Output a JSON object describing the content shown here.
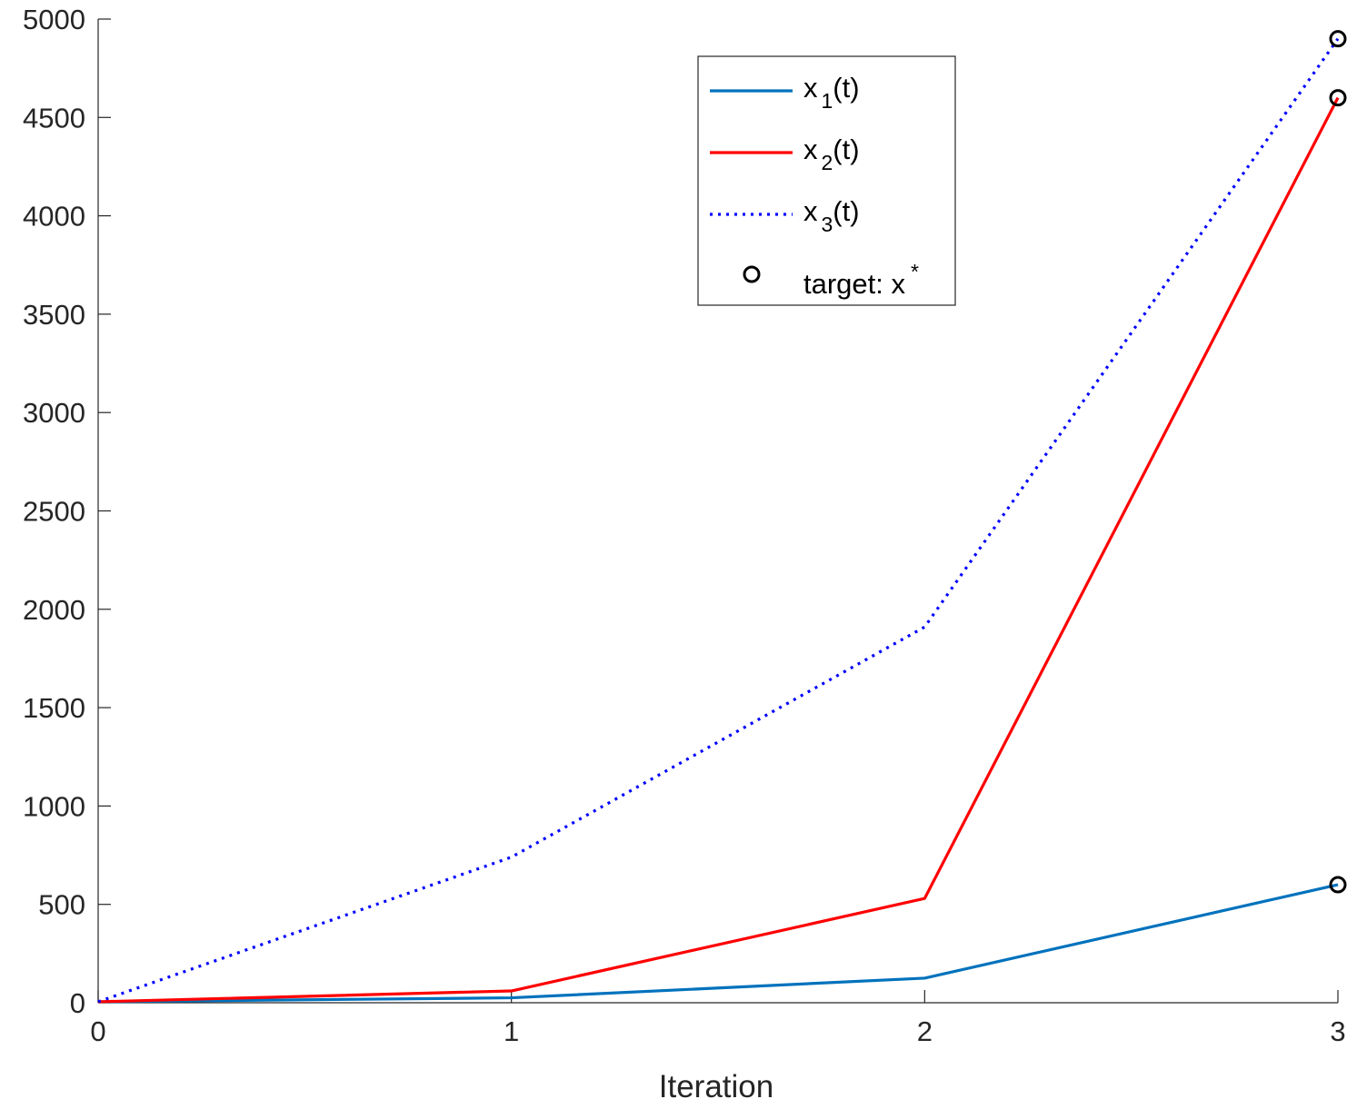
{
  "chart_data": {
    "type": "line",
    "xlabel": "Iteration",
    "ylabel": "",
    "title": "",
    "xlim": [
      0,
      3
    ],
    "ylim": [
      0,
      5000
    ],
    "x": [
      0,
      1,
      2,
      3
    ],
    "xticks": [
      "0",
      "1",
      "2",
      "3"
    ],
    "yticks": [
      "0",
      "500",
      "1000",
      "1500",
      "2000",
      "2500",
      "3000",
      "3500",
      "4000",
      "4500",
      "5000"
    ],
    "grid": false,
    "legend_position": "top-right",
    "series": [
      {
        "name": "x_1(t)",
        "label_base": "x",
        "label_sub": "1",
        "label_suffix": "(t)",
        "color": "#0072BD",
        "style": "solid",
        "values": [
          5,
          25,
          125,
          600
        ]
      },
      {
        "name": "x_2(t)",
        "label_base": "x",
        "label_sub": "2",
        "label_suffix": "(t)",
        "color": "#FF0000",
        "style": "solid",
        "values": [
          5,
          60,
          530,
          4600
        ]
      },
      {
        "name": "x_3(t)",
        "label_base": "x",
        "label_sub": "3",
        "label_suffix": "(t)",
        "color": "#0000FF",
        "style": "dotted",
        "values": [
          5,
          740,
          1910,
          4900
        ]
      }
    ],
    "targets": {
      "name": "target: x*",
      "label_text": "target: x",
      "label_sup": "*",
      "color": "#000000",
      "marker": "circle",
      "points": [
        {
          "x": 3,
          "y": 600
        },
        {
          "x": 3,
          "y": 4600
        },
        {
          "x": 3,
          "y": 4900
        }
      ]
    }
  }
}
